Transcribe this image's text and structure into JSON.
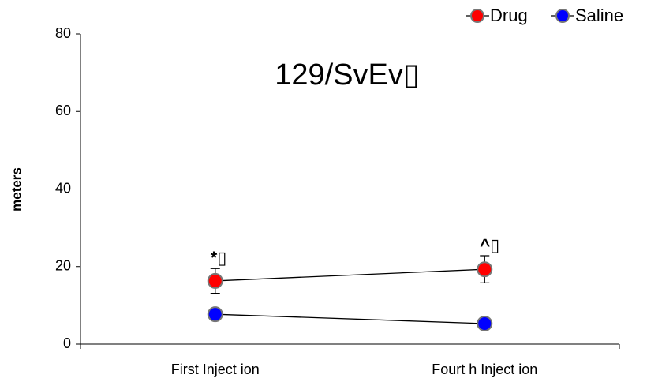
{
  "chart_data": {
    "type": "line",
    "title": "129/SvEv▯",
    "y_label": "meters",
    "categories": [
      "First  Inject ion",
      "Fourt h  Inject ion"
    ],
    "series": [
      {
        "name": "Drug",
        "color": "#ff0000",
        "values": [
          16.3,
          19.3
        ],
        "errors": [
          3.2,
          3.5
        ],
        "annotations": [
          "*▯",
          "^▯"
        ]
      },
      {
        "name": "Saline",
        "color": "#0000ff",
        "values": [
          7.7,
          5.3
        ]
      }
    ],
    "ylim": [
      0,
      80
    ],
    "yticks": [
      0,
      20,
      40,
      60,
      80
    ],
    "legend": "top-right"
  }
}
